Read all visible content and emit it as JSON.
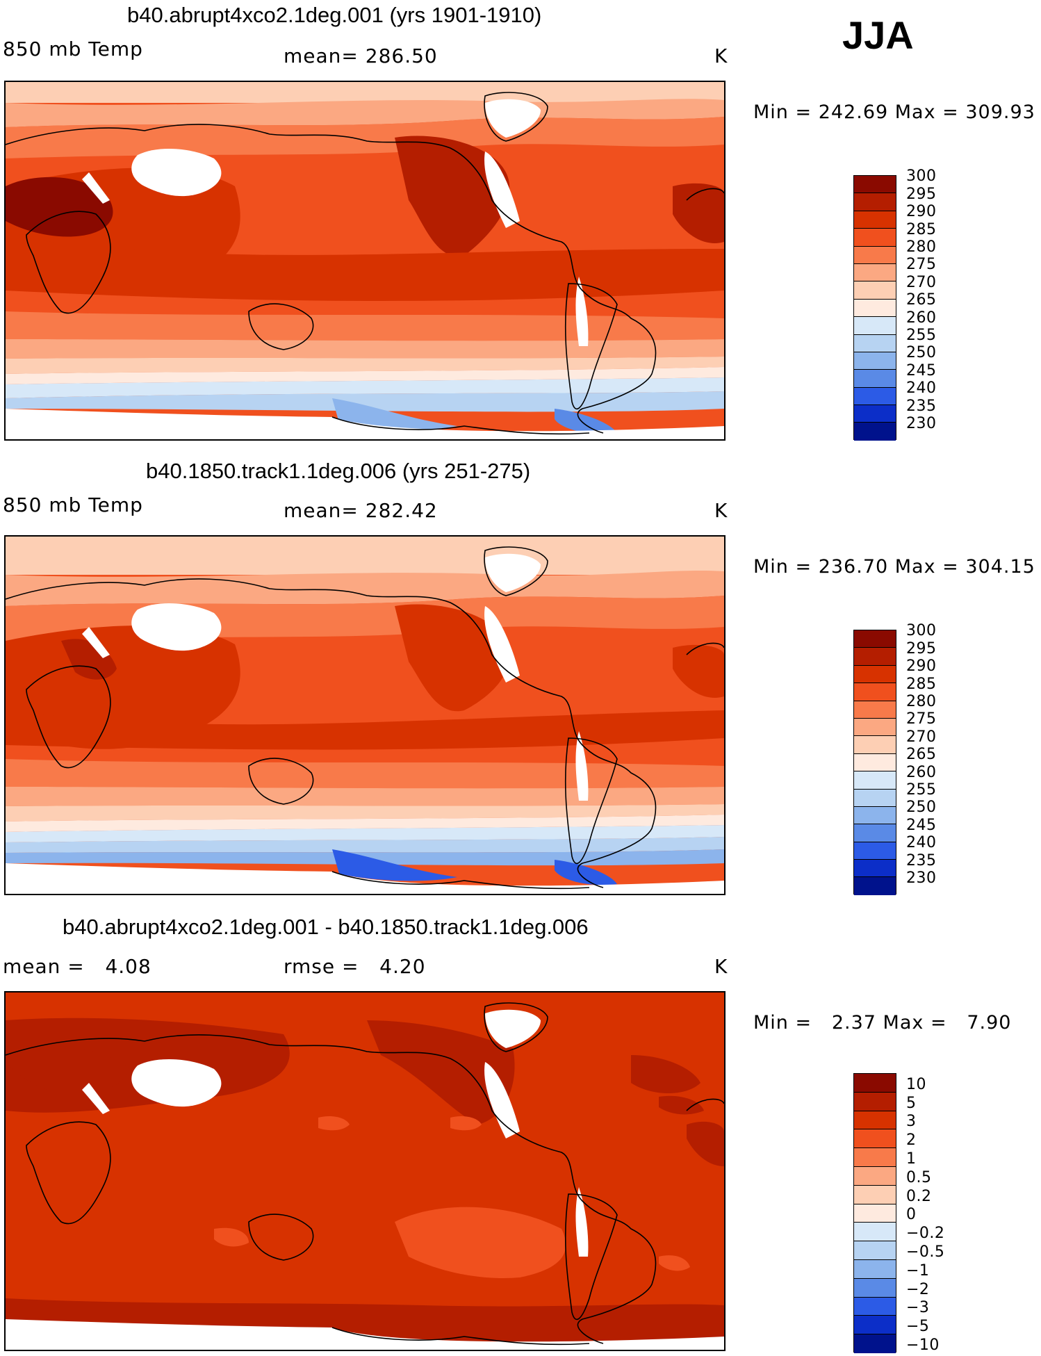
{
  "season_label": "JJA",
  "panels": [
    {
      "title": "b40.abrupt4xco2.1deg.001 (yrs 1901-1910)",
      "left_label": "850 mb Temp",
      "center_label": "mean= 286.50",
      "units": "K",
      "min_max": "Min = 242.69 Max = 309.93",
      "colorbar_labels": [
        "300",
        "295",
        "290",
        "285",
        "280",
        "275",
        "270",
        "265",
        "260",
        "255",
        "250",
        "245",
        "240",
        "235",
        "230"
      ]
    },
    {
      "title": "b40.1850.track1.1deg.006 (yrs 251-275)",
      "left_label": "850 mb Temp",
      "center_label": "mean= 282.42",
      "units": "K",
      "min_max": "Min = 236.70 Max = 304.15",
      "colorbar_labels": [
        "300",
        "295",
        "290",
        "285",
        "280",
        "275",
        "270",
        "265",
        "260",
        "255",
        "250",
        "245",
        "240",
        "235",
        "230"
      ]
    },
    {
      "title": "b40.abrupt4xco2.1deg.001 - b40.1850.track1.1deg.006",
      "left_label": "mean =   4.08",
      "center_label": "rmse =   4.20",
      "units": "K",
      "min_max": "Min =   2.37 Max =   7.90",
      "colorbar_labels": [
        "10",
        "5",
        "3",
        "2",
        "1",
        "0.5",
        "0.2",
        "0",
        "−0.2",
        "−0.5",
        "−1",
        "−2",
        "−3",
        "−5",
        "−10"
      ]
    }
  ],
  "colors": {
    "scale": [
      "#8a0a00",
      "#b41e00",
      "#d73200",
      "#f0501e",
      "#f87a4a",
      "#fba882",
      "#fdcfb4",
      "#feeadf",
      "#d7e8f8",
      "#b7d3f2",
      "#8cb4ec",
      "#5a8ae6",
      "#2c5be6",
      "#0c2ec8",
      "#00128c"
    ],
    "ocean_light": "#fdcfb4",
    "ice": "#ffffff"
  }
}
